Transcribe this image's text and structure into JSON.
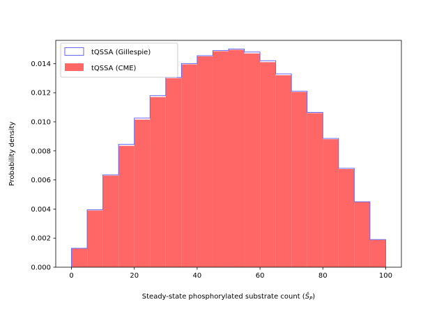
{
  "chart_data": {
    "type": "bar",
    "xlabel": "Steady-state phosphorylated substrate count (",
    "xlabel_math": "Ŝ",
    "xlabel_sub": "P",
    "xlabel_close": ")",
    "ylabel": "Probability density",
    "xlim": [
      -5,
      105
    ],
    "ylim": [
      0,
      0.0156
    ],
    "xticks": [
      0,
      20,
      40,
      60,
      80,
      100
    ],
    "yticks": [
      0.0,
      0.002,
      0.004,
      0.006,
      0.008,
      0.01,
      0.012,
      0.014
    ],
    "ytick_labels": [
      "0.000",
      "0.002",
      "0.004",
      "0.006",
      "0.008",
      "0.010",
      "0.012",
      "0.014"
    ],
    "bin_edges": [
      0,
      5,
      10,
      15,
      20,
      25,
      30,
      35,
      40,
      45,
      50,
      55,
      60,
      65,
      70,
      75,
      80,
      85,
      90,
      95,
      100
    ],
    "legend_position": "upper-left",
    "series": [
      {
        "name": "tQSSA (Gillespie)",
        "style": "step",
        "color": "#6666ee",
        "values": [
          0.0013,
          0.00395,
          0.00635,
          0.00845,
          0.01025,
          0.0118,
          0.01305,
          0.014,
          0.01455,
          0.0149,
          0.015,
          0.0148,
          0.0142,
          0.0133,
          0.0121,
          0.01065,
          0.00885,
          0.0068,
          0.0045,
          0.0019
        ]
      },
      {
        "name": "tQSSA (CME)",
        "style": "filled",
        "color": "#ff6666",
        "values": [
          0.00128,
          0.0039,
          0.0063,
          0.00835,
          0.01015,
          0.0117,
          0.013,
          0.01395,
          0.0145,
          0.01485,
          0.01495,
          0.0147,
          0.0141,
          0.0132,
          0.01205,
          0.0106,
          0.0088,
          0.00675,
          0.00448,
          0.00188
        ]
      }
    ]
  }
}
